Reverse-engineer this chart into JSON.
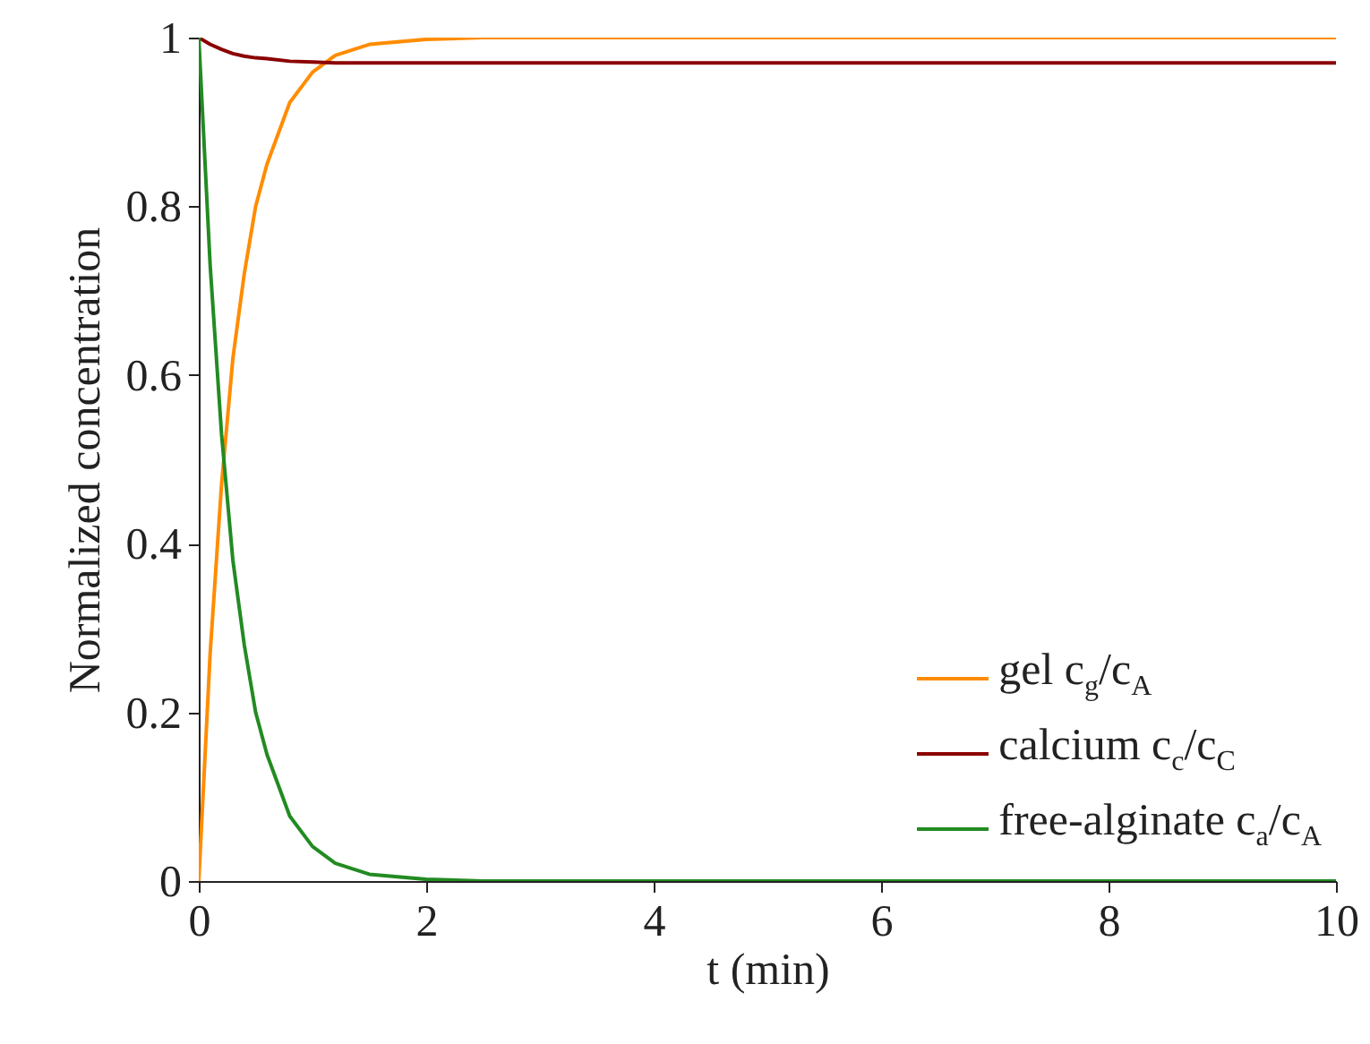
{
  "chart_data": {
    "type": "line",
    "xlabel": "t (min)",
    "ylabel": "Normalized concentration",
    "x": [
      0,
      0.1,
      0.2,
      0.3,
      0.4,
      0.5,
      0.6,
      0.8,
      1,
      1.2,
      1.5,
      2,
      2.5,
      3,
      4,
      6,
      8,
      10
    ],
    "series": [
      {
        "name": "gel c$_{g}$/c$_{A}$",
        "color": "#ff8c00",
        "values": [
          0,
          0.27,
          0.47,
          0.62,
          0.72,
          0.8,
          0.85,
          0.923,
          0.959,
          0.979,
          0.992,
          0.998,
          1,
          1,
          1,
          1,
          1,
          1
        ]
      },
      {
        "name": "calcium c$_{c}$/c$_{C}$",
        "color": "#8b0000",
        "values": [
          1,
          0.992,
          0.986,
          0.981,
          0.978,
          0.976,
          0.975,
          0.972,
          0.971,
          0.97,
          0.97,
          0.97,
          0.97,
          0.97,
          0.97,
          0.97,
          0.97,
          0.97
        ]
      },
      {
        "name": "free-alginate c$_{a}$/c$_{A}$",
        "color": "#228b22",
        "values": [
          1,
          0.73,
          0.53,
          0.38,
          0.28,
          0.2,
          0.15,
          0.077,
          0.041,
          0.021,
          0.008,
          0.002,
          0,
          0,
          0,
          0,
          0,
          0
        ]
      }
    ],
    "xlim": [
      0,
      10
    ],
    "xticks": [
      0,
      2,
      4,
      6,
      8,
      10
    ],
    "ylim": [
      0,
      1
    ],
    "yticks": [
      0,
      0.2,
      0.4,
      0.6,
      0.8,
      1
    ],
    "legend": "bottom right",
    "marker": "none",
    "line_style": "solid",
    "grid": false
  }
}
